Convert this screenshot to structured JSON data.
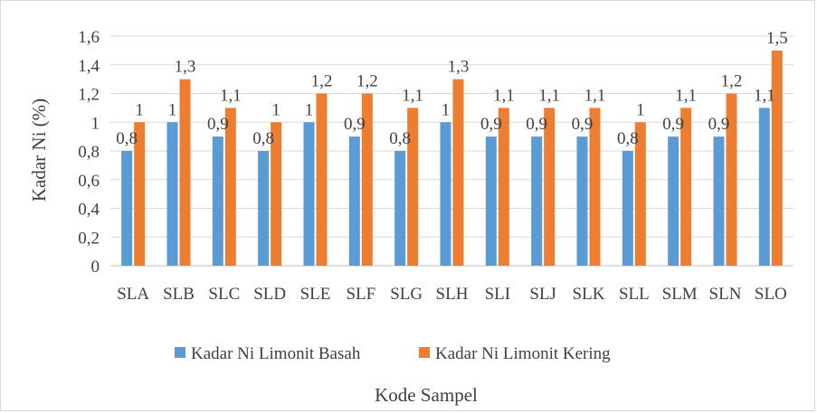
{
  "chart_data": {
    "type": "bar",
    "categories": [
      "SLA",
      "SLB",
      "SLC",
      "SLD",
      "SLE",
      "SLF",
      "SLG",
      "SLH",
      "SLI",
      "SLJ",
      "SLK",
      "SLL",
      "SLM",
      "SLN",
      "SLO"
    ],
    "series": [
      {
        "name": "Kadar Ni Limonit Basah",
        "color": "#5b9bd5",
        "values": [
          0.8,
          1,
          0.9,
          0.8,
          1,
          0.9,
          0.8,
          1,
          0.9,
          0.9,
          0.9,
          0.8,
          0.9,
          0.9,
          1.1
        ]
      },
      {
        "name": "Kadar Ni Limonit Kering",
        "color": "#ed7d31",
        "values": [
          1,
          1.3,
          1.1,
          1,
          1.2,
          1.2,
          1.1,
          1.3,
          1.1,
          1.1,
          1.1,
          1,
          1.1,
          1.2,
          1.5
        ]
      }
    ],
    "series_labels": [
      [
        "0,8",
        "1",
        "0,9",
        "0,8",
        "1",
        "0,9",
        "0,8",
        "1",
        "0,9",
        "0,9",
        "0,9",
        "0,8",
        "0,9",
        "0,9",
        "1,1"
      ],
      [
        "1",
        "1,3",
        "1,1",
        "1",
        "1,2",
        "1,2",
        "1,1",
        "1,3",
        "1,1",
        "1,1",
        "1,1",
        "1",
        "1,1",
        "1,2",
        "1,5"
      ]
    ],
    "ylim": [
      0,
      1.6
    ],
    "yticks": [
      "0",
      "0,2",
      "0,4",
      "0,6",
      "0,8",
      "1",
      "1,2",
      "1,4",
      "1,6"
    ],
    "ylabel": "Kadar Ni (%)",
    "xlabel": "Kode Sampel",
    "legend_position": "bottom",
    "grid": true
  }
}
